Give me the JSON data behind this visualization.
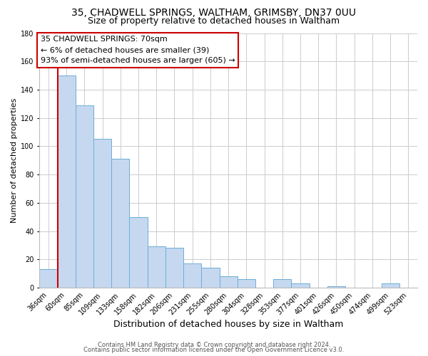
{
  "title": "35, CHADWELL SPRINGS, WALTHAM, GRIMSBY, DN37 0UU",
  "subtitle": "Size of property relative to detached houses in Waltham",
  "xlabel": "Distribution of detached houses by size in Waltham",
  "ylabel": "Number of detached properties",
  "bar_labels": [
    "36sqm",
    "60sqm",
    "85sqm",
    "109sqm",
    "133sqm",
    "158sqm",
    "182sqm",
    "206sqm",
    "231sqm",
    "255sqm",
    "280sqm",
    "304sqm",
    "328sqm",
    "353sqm",
    "377sqm",
    "401sqm",
    "426sqm",
    "450sqm",
    "474sqm",
    "499sqm",
    "523sqm"
  ],
  "bar_values": [
    13,
    150,
    129,
    105,
    91,
    50,
    29,
    28,
    17,
    14,
    8,
    6,
    0,
    6,
    3,
    0,
    1,
    0,
    0,
    3,
    0
  ],
  "bar_color": "#c5d8f0",
  "bar_edge_color": "#6baed6",
  "highlight_bar_idx": 1,
  "highlight_color": "#cc0000",
  "ylim": [
    0,
    180
  ],
  "yticks": [
    0,
    20,
    40,
    60,
    80,
    100,
    120,
    140,
    160,
    180
  ],
  "annotation_title": "35 CHADWELL SPRINGS: 70sqm",
  "annotation_line1": "← 6% of detached houses are smaller (39)",
  "annotation_line2": "93% of semi-detached houses are larger (605) →",
  "annotation_box_color": "#ffffff",
  "annotation_box_edge": "#cc0000",
  "footer1": "Contains HM Land Registry data © Crown copyright and database right 2024.",
  "footer2": "Contains public sector information licensed under the Open Government Licence v3.0.",
  "background_color": "#ffffff",
  "grid_color": "#cccccc",
  "title_fontsize": 10,
  "subtitle_fontsize": 9,
  "xlabel_fontsize": 9,
  "ylabel_fontsize": 8,
  "tick_fontsize": 7,
  "annotation_fontsize": 8,
  "footer_fontsize": 6
}
